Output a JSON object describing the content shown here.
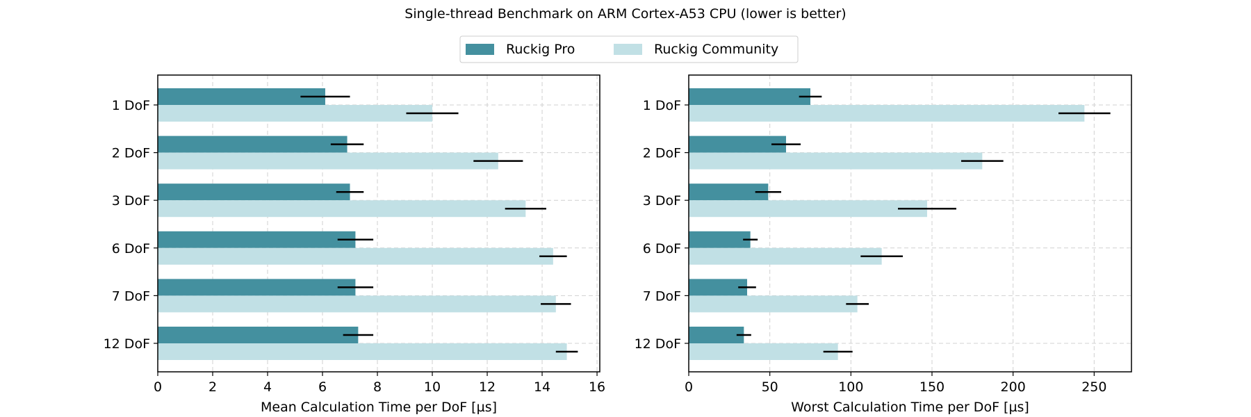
{
  "title": "Single-thread Benchmark on ARM Cortex-A53 CPU (lower is better)",
  "legend": {
    "placement": "top-center",
    "entries": [
      {
        "label": "Ruckig Pro",
        "color": "#44909F"
      },
      {
        "label": "Ruckig Community",
        "color": "#C1E0E5"
      }
    ]
  },
  "chart_data": [
    {
      "type": "bar",
      "orientation": "horizontal",
      "error_bars": true,
      "grid": true,
      "categories": [
        "1 DoF",
        "2 DoF",
        "3 DoF",
        "6 DoF",
        "7 DoF",
        "12 DoF"
      ],
      "series": [
        {
          "name": "Ruckig Pro",
          "color": "#44909F",
          "values": [
            6.1,
            6.9,
            7.0,
            7.2,
            7.2,
            7.3
          ],
          "errors": [
            0.9,
            0.6,
            0.5,
            0.65,
            0.65,
            0.55
          ]
        },
        {
          "name": "Ruckig Community",
          "color": "#C1E0E5",
          "values": [
            10.0,
            12.4,
            13.4,
            14.4,
            14.5,
            14.9
          ],
          "errors": [
            0.95,
            0.9,
            0.75,
            0.5,
            0.55,
            0.4
          ]
        }
      ],
      "xlabel": "Mean Calculation Time per DoF [µs]",
      "xlim": [
        0,
        16.1
      ],
      "xticks": [
        0,
        2,
        4,
        6,
        8,
        10,
        12,
        14,
        16
      ]
    },
    {
      "type": "bar",
      "orientation": "horizontal",
      "error_bars": true,
      "grid": true,
      "categories": [
        "1 DoF",
        "2 DoF",
        "3 DoF",
        "6 DoF",
        "7 DoF",
        "12 DoF"
      ],
      "series": [
        {
          "name": "Ruckig Pro",
          "color": "#44909F",
          "values": [
            75,
            60,
            49,
            38,
            36,
            34
          ],
          "errors": [
            7,
            9,
            8,
            4.5,
            5.5,
            4.5
          ]
        },
        {
          "name": "Ruckig Community",
          "color": "#C1E0E5",
          "values": [
            244,
            181,
            147,
            119,
            104,
            92
          ],
          "errors": [
            16,
            13,
            18,
            13,
            7,
            9
          ]
        }
      ],
      "xlabel": "Worst Calculation Time per DoF [µs]",
      "xlim": [
        0,
        273
      ],
      "xticks": [
        0,
        50,
        100,
        150,
        200,
        250
      ]
    }
  ]
}
